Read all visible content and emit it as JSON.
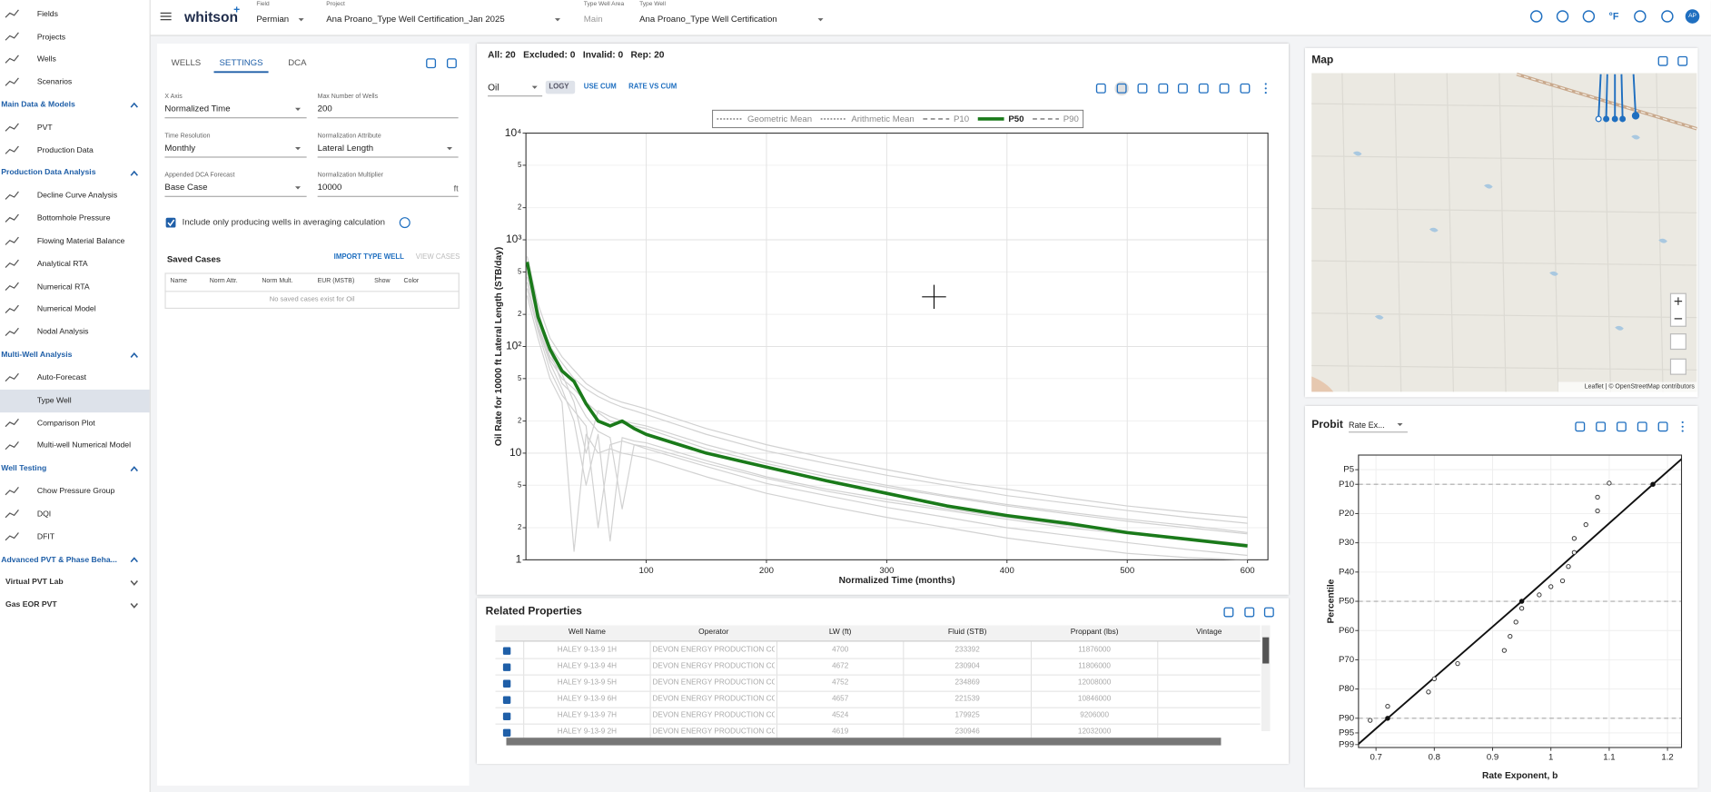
{
  "sidebar": {
    "top_items": [
      "Fields",
      "Projects",
      "Wells",
      "Scenarios"
    ],
    "sections": [
      {
        "title": "Main Data & Models",
        "items": [
          "PVT",
          "Production Data"
        ]
      },
      {
        "title": "Production Data Analysis",
        "items": [
          "Decline Curve Analysis",
          "Bottomhole Pressure",
          "Flowing Material Balance",
          "Analytical RTA",
          "Numerical RTA",
          "Numerical Model",
          "Nodal Analysis"
        ]
      },
      {
        "title": "Multi-Well Analysis",
        "items": [
          "Auto-Forecast",
          "Type Well",
          "Comparison Plot",
          "Multi-well Numerical Model"
        ],
        "active_index": 1
      },
      {
        "title": "Well Testing",
        "items": [
          "Chow Pressure Group",
          "DQI",
          "DFIT"
        ]
      },
      {
        "title": "Advanced PVT & Phase Beha..."
      },
      {
        "title": "Virtual PVT Lab",
        "collapsed": true
      },
      {
        "title": "Gas EOR PVT",
        "collapsed": true
      }
    ]
  },
  "topbar": {
    "logo": "whitson",
    "logo_sup": "+",
    "fields": [
      {
        "label": "Field",
        "value": "Permian",
        "select": true
      },
      {
        "label": "Project",
        "value": "Ana Proano_Type Well Certification_Jan 2025",
        "select": true
      },
      {
        "label": "Type Well Area",
        "value": "Main"
      },
      {
        "label": "Type Well",
        "value": "Ana Proano_Type Well Certification",
        "select": true
      }
    ],
    "unit_button": "°F",
    "avatar": "AP"
  },
  "settings": {
    "tabs": [
      "WELLS",
      "SETTINGS",
      "DCA"
    ],
    "active_tab": 1,
    "fields": [
      {
        "label": "X Axis",
        "value": "Normalized Time",
        "select": true
      },
      {
        "label": "Max Number of Wells",
        "value": 200
      },
      {
        "label": "Time Resolution",
        "value": "Monthly",
        "select": true
      },
      {
        "label": "Normalization Attribute",
        "value": "Lateral Length",
        "select": true
      },
      {
        "label": "Appended DCA Forecast",
        "value": "Base Case",
        "select": true
      },
      {
        "label": "Normalization Multiplier",
        "value": 10000,
        "unit": "ft"
      }
    ],
    "checkbox": "Include only producing wells in averaging calculation",
    "saved_cases": {
      "title": "Saved Cases",
      "actions": [
        "IMPORT TYPE WELL",
        "VIEW CASES"
      ],
      "columns": [
        "Name",
        "Norm Attr.",
        "Norm Mult.",
        "EUR (MSTB)",
        "Show",
        "Color"
      ],
      "empty": "No saved cases exist for Oil"
    }
  },
  "type_well": {
    "stats": [
      "All: 20",
      "Excluded: 0",
      "Invalid: 0",
      "Rep: 20"
    ],
    "fluid": "Oil",
    "buttons": [
      "LOGY",
      "USE CUM",
      "RATE VS CUM"
    ]
  },
  "chart_data": [
    {
      "type": "line",
      "x_label": "Normalized Time (months)",
      "y_label": "Oil Rate for 10000 ft Lateral Length (STB/day)",
      "x": [
        1,
        10,
        20,
        30,
        40,
        50,
        60,
        70,
        80,
        90,
        100,
        150,
        200,
        250,
        300,
        350,
        400,
        450,
        500,
        550,
        600
      ],
      "series": [
        {
          "color": "#d2d2d2",
          "values": [
            700,
            250,
            120,
            80,
            60,
            45,
            38,
            33,
            30,
            28,
            26,
            17,
            12,
            9,
            7,
            5.5,
            4.6,
            3.8,
            3.2,
            2.8,
            2.5
          ]
        },
        {
          "color": "#d2d2d2",
          "values": [
            500,
            200,
            100,
            70,
            50,
            40,
            34,
            30,
            27,
            25,
            23,
            15,
            10.5,
            8,
            6.2,
            5,
            4,
            3.4,
            2.9,
            2.5,
            2.2
          ]
        },
        {
          "color": "#d2d2d2",
          "values": [
            450,
            180,
            80,
            55,
            30,
            10,
            25,
            22,
            20,
            19,
            18,
            12,
            8.5,
            6.4,
            5,
            4,
            3.3,
            2.8,
            2.4,
            2.1,
            1.8
          ]
        },
        {
          "color": "#d2d2d2",
          "values": [
            400,
            150,
            70,
            40,
            20,
            5,
            15,
            1.5,
            14,
            13,
            12.5,
            8.5,
            6,
            4.6,
            3.7,
            3,
            2.5,
            2.1,
            1.8,
            1.6,
            1.4
          ]
        },
        {
          "color": "#d2d2d2",
          "values": [
            350,
            140,
            60,
            35,
            25,
            18,
            2,
            12,
            13,
            12,
            11,
            7.5,
            5.2,
            4,
            3.1,
            2.5,
            2,
            1.7,
            1.45,
            1.25,
            1.1
          ]
        },
        {
          "color": "#d2d2d2",
          "values": [
            300,
            120,
            50,
            30,
            1.2,
            15,
            10,
            11,
            10,
            9.5,
            9,
            6,
            4.2,
            3.2,
            2.5,
            2,
            1.6,
            1.35,
            1.15,
            1.05,
            1
          ]
        },
        {
          "color": "#d2d2d2",
          "values": [
            600,
            220,
            90,
            45,
            35,
            22,
            16,
            14,
            3,
            12,
            11.5,
            8,
            5.8,
            4.4,
            3.5,
            2.9,
            2.4,
            2,
            1.75,
            1.55,
            1.4
          ]
        },
        {
          "color": "#d2d2d2",
          "values": [
            550,
            160,
            75,
            50,
            40,
            30,
            24,
            20,
            19,
            18,
            17,
            11,
            8,
            6,
            4.8,
            3.9,
            3.2,
            2.7,
            2.3,
            2,
            1.75
          ]
        },
        {
          "color": "#1a7a1a",
          "width": 3,
          "values": [
            620,
            190,
            94,
            59,
            47,
            29,
            20,
            18,
            20,
            17,
            15,
            10,
            7.4,
            5.5,
            4.2,
            3.2,
            2.6,
            2.2,
            1.8,
            1.56,
            1.35
          ]
        }
      ],
      "legend": [
        {
          "name": "Geometric Mean",
          "color": "#999999",
          "dash": "dot"
        },
        {
          "name": "Arithmetic Mean",
          "color": "#999999",
          "dash": "dot"
        },
        {
          "name": "P10",
          "color": "#999999",
          "dash": "dash"
        },
        {
          "name": "P50",
          "color": "#1a7a1a",
          "dash": "solid"
        },
        {
          "name": "P90",
          "color": "#999999",
          "dash": "dash"
        }
      ],
      "xlim": [
        0,
        617
      ],
      "ylim": [
        1,
        10000
      ],
      "log_y": true,
      "grid": true,
      "xticks": [
        100,
        200,
        300,
        400,
        500,
        600
      ],
      "yticks": [
        1,
        2,
        5,
        10,
        {
          "value": 20,
          "label": "2"
        },
        {
          "value": 50,
          "label": "5"
        },
        {
          "value": 100,
          "label": "10²"
        },
        {
          "value": 200,
          "label": "2"
        },
        {
          "value": 500,
          "label": "5"
        },
        {
          "value": 1000,
          "label": "10³"
        },
        {
          "value": 2000,
          "label": "2"
        },
        {
          "value": 5000,
          "label": "5"
        },
        {
          "value": 10000,
          "label": "10⁴"
        }
      ]
    },
    {
      "type": "scatter",
      "title": "Probit",
      "x_label": "Rate Exponent, b",
      "y_label": "Percentile",
      "x": [
        0.69,
        0.72,
        0.79,
        0.8,
        0.84,
        0.92,
        0.93,
        0.94,
        0.95,
        0.98,
        1,
        1.02,
        1.03,
        1.04,
        1.04,
        1.06,
        1.08,
        1.08,
        1.1
      ],
      "values": [
        90.7,
        85.9,
        81,
        76.5,
        71.3,
        66.8,
        62,
        57.1,
        52.4,
        47.8,
        45,
        43,
        38.1,
        33.3,
        28.5,
        23.8,
        19.1,
        14.4,
        9.6
      ],
      "point_color": "#333333",
      "fit": {
        "x": [
          0.72,
          0.95,
          1.175
        ],
        "values": [
          90,
          50,
          10
        ],
        "color": "#111111"
      },
      "ref_lines": [
        10,
        50,
        90
      ],
      "xlim": [
        0.67,
        1.224
      ],
      "ylim": [
        0,
        100
      ],
      "y_reversed": true,
      "grid": true,
      "xticks": [
        0.7,
        0.8,
        0.9,
        1,
        1.1,
        1.2
      ],
      "yticks": [
        {
          "value": 5,
          "label": "P5"
        },
        {
          "value": 10,
          "label": "P10"
        },
        {
          "value": 20,
          "label": "P20"
        },
        {
          "value": 30,
          "label": "P30"
        },
        {
          "value": 40,
          "label": "P40"
        },
        {
          "value": 50,
          "label": "P50"
        },
        {
          "value": 60,
          "label": "P60"
        },
        {
          "value": 70,
          "label": "P70"
        },
        {
          "value": 80,
          "label": "P80"
        },
        {
          "value": 90,
          "label": "P90"
        },
        {
          "value": 95,
          "label": "P95"
        },
        {
          "value": 99,
          "label": "P99"
        }
      ]
    }
  ],
  "probit_panel": {
    "selector": "Rate Ex..."
  },
  "map": {
    "title": "Map",
    "attribution": "Leaflet | © OpenStreetMap contributors"
  },
  "related_properties": {
    "title": "Related Properties",
    "columns": [
      "Well Name",
      "Operator",
      "LW (ft)",
      "Fluid (STB)",
      "Proppant (lbs)",
      "Vintage"
    ],
    "rows": [
      [
        "HALEY 9-13-9 1H",
        "DEVON ENERGY PRODUCTION CO",
        4700,
        233392,
        11876000
      ],
      [
        "HALEY 9-13-9 4H",
        "DEVON ENERGY PRODUCTION CO",
        4672,
        230904,
        11806000
      ],
      [
        "HALEY 9-13-9 5H",
        "DEVON ENERGY PRODUCTION CO",
        4752,
        234869,
        12008000
      ],
      [
        "HALEY 9-13-9 6H",
        "DEVON ENERGY PRODUCTION CO",
        4657,
        221539,
        10846000
      ],
      [
        "HALEY 9-13-9 7H",
        "DEVON ENERGY PRODUCTION CO",
        4524,
        179925,
        9206000
      ],
      [
        "HALEY 9-13-9 2H",
        "DEVON ENERGY PRODUCTION CO",
        4619,
        230946,
        12032000
      ]
    ]
  }
}
